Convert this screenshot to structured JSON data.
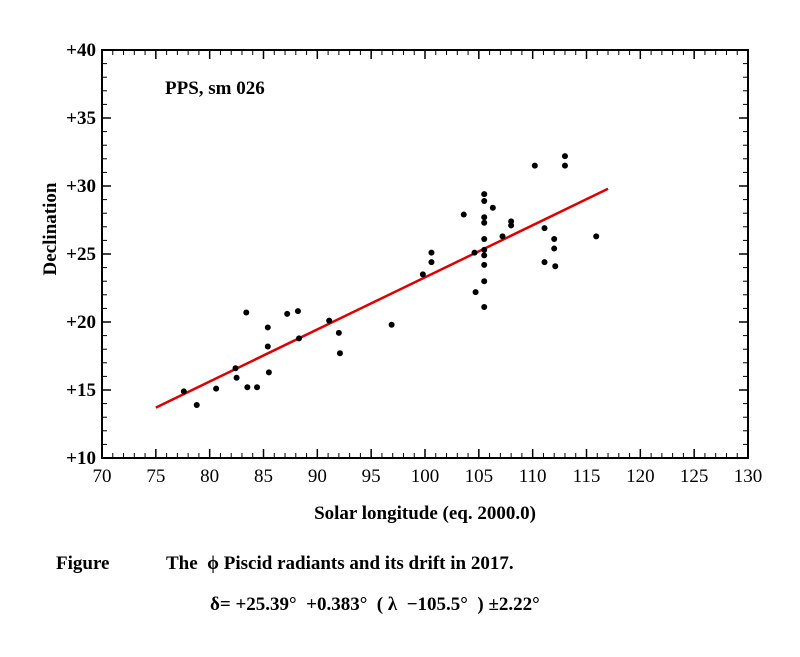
{
  "chart_data": {
    "type": "scatter",
    "annotation": "PPS, sm 026",
    "xlabel": "Solar longitude (eq. 2000.0)",
    "ylabel": "Declination",
    "xlim": [
      70,
      130
    ],
    "ylim": [
      10,
      40
    ],
    "x_ticks": [
      "70",
      "75",
      "80",
      "85",
      "90",
      "95",
      "100",
      "105",
      "110",
      "115",
      "120",
      "125",
      "130"
    ],
    "y_ticks": [
      "+10",
      "+15",
      "+20",
      "+25",
      "+30",
      "+35",
      "+40"
    ],
    "grid": false,
    "point_color": "#000000",
    "fit_color": "#e00000",
    "points": [
      [
        77.6,
        14.9
      ],
      [
        78.8,
        13.9
      ],
      [
        80.6,
        15.1
      ],
      [
        82.4,
        16.6
      ],
      [
        82.5,
        15.9
      ],
      [
        83.4,
        20.7
      ],
      [
        83.5,
        15.2
      ],
      [
        84.4,
        15.2
      ],
      [
        85.4,
        19.6
      ],
      [
        85.4,
        18.2
      ],
      [
        85.5,
        16.3
      ],
      [
        87.2,
        20.6
      ],
      [
        88.2,
        20.8
      ],
      [
        88.3,
        18.8
      ],
      [
        91.1,
        20.1
      ],
      [
        92.0,
        19.2
      ],
      [
        92.1,
        17.7
      ],
      [
        96.9,
        19.8
      ],
      [
        99.8,
        23.5
      ],
      [
        100.6,
        25.1
      ],
      [
        100.6,
        24.4
      ],
      [
        103.6,
        27.9
      ],
      [
        104.6,
        25.1
      ],
      [
        104.7,
        22.2
      ],
      [
        105.5,
        29.4
      ],
      [
        105.5,
        28.9
      ],
      [
        105.5,
        27.7
      ],
      [
        105.5,
        27.3
      ],
      [
        105.5,
        26.1
      ],
      [
        105.5,
        25.3
      ],
      [
        105.5,
        24.9
      ],
      [
        105.5,
        24.2
      ],
      [
        105.5,
        23.0
      ],
      [
        105.5,
        21.1
      ],
      [
        106.3,
        28.4
      ],
      [
        107.2,
        26.3
      ],
      [
        108.0,
        27.4
      ],
      [
        108.0,
        27.1
      ],
      [
        110.2,
        31.5
      ],
      [
        111.1,
        26.9
      ],
      [
        111.1,
        24.4
      ],
      [
        112.0,
        26.1
      ],
      [
        112.0,
        25.4
      ],
      [
        112.1,
        24.1
      ],
      [
        113.0,
        32.2
      ],
      [
        113.0,
        31.5
      ],
      [
        115.9,
        26.3
      ]
    ],
    "fit": {
      "intercept": 25.39,
      "slope": 0.383,
      "center": 105.5,
      "x_range": [
        75,
        117
      ]
    }
  },
  "caption": {
    "label": "Figure",
    "title": "The  ϕ Piscid radiants and its drift in 2017.",
    "formula": "δ= +25.39°  +0.383°  ( λ  −105.5°  ) ±2.22°"
  }
}
